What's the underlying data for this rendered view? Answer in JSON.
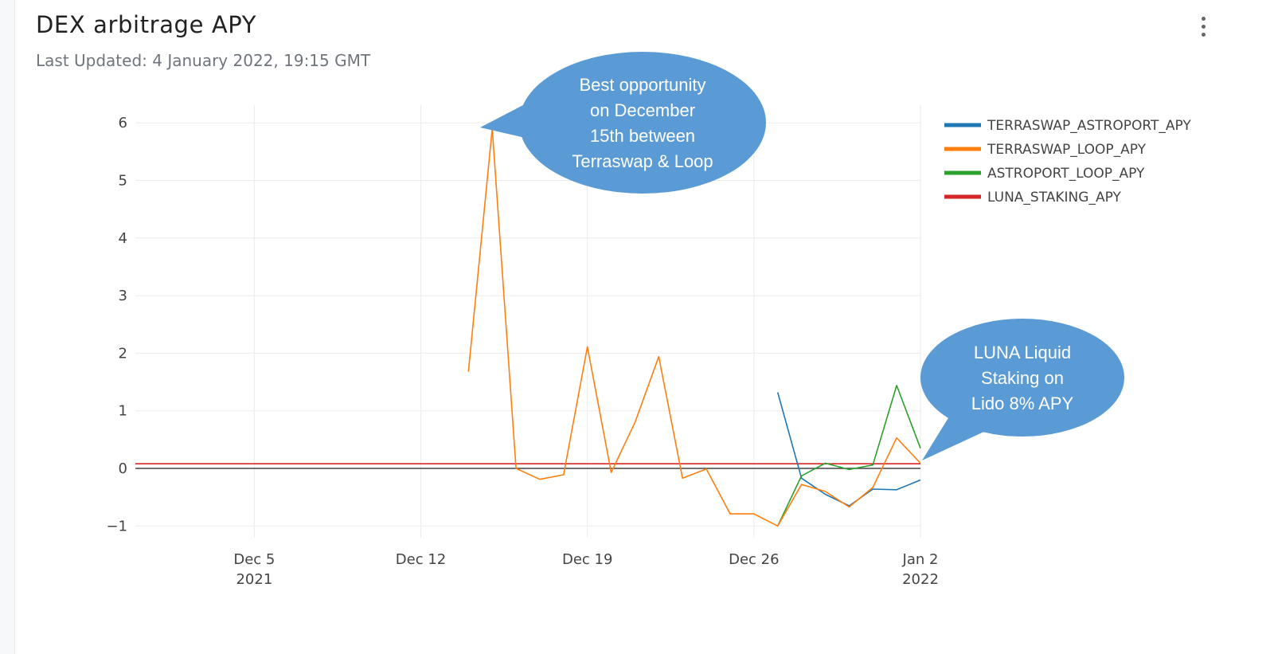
{
  "header": {
    "title": "DEX arbitrage APY",
    "subtitle": "Last Updated: 4 January 2022, 19:15 GMT",
    "menu_icon": "more-vertical-icon"
  },
  "colors": {
    "TERRASWAP_ASTROPORT_APY": "#1f77b4",
    "TERRASWAP_LOOP_APY": "#ff7f0e",
    "ASTROPORT_LOOP_APY": "#2ca02c",
    "LUNA_STAKING_APY": "#d62728",
    "callout": "#5b9bd5"
  },
  "callouts": [
    {
      "lines": [
        "Best opportunity",
        "on December",
        "15th between",
        "Terraswap & Loop"
      ]
    },
    {
      "lines": [
        "LUNA Liquid",
        "Staking on",
        "Lido 8% APY"
      ]
    }
  ],
  "chart_data": {
    "type": "line",
    "x_range": [
      "2021-11-30",
      "2022-01-02"
    ],
    "ylim": [
      -1.3,
      6.3
    ],
    "y_ticks": [
      -1,
      0,
      1,
      2,
      3,
      4,
      5,
      6
    ],
    "y_tick_labels": [
      "−1",
      "0",
      "1",
      "2",
      "3",
      "4",
      "5",
      "6"
    ],
    "x_ticks": [
      {
        "date": "2021-12-05",
        "line1": "Dec 5",
        "line2": "2021"
      },
      {
        "date": "2021-12-12",
        "line1": "Dec 12",
        "line2": ""
      },
      {
        "date": "2021-12-19",
        "line1": "Dec 19",
        "line2": ""
      },
      {
        "date": "2021-12-26",
        "line1": "Dec 26",
        "line2": ""
      },
      {
        "date": "2022-01-02",
        "line1": "Jan 2",
        "line2": "2022"
      }
    ],
    "grid": true,
    "legend_position": "top-right",
    "series": [
      {
        "name": "TERRASWAP_ASTROPORT_APY",
        "x": [
          "2021-12-27",
          "2021-12-28",
          "2021-12-29",
          "2021-12-30",
          "2021-12-31",
          "2022-01-01",
          "2022-01-02"
        ],
        "y": [
          1.32,
          -0.17,
          -0.45,
          -0.65,
          -0.36,
          -0.37,
          -0.2
        ]
      },
      {
        "name": "TERRASWAP_LOOP_APY",
        "x": [
          "2021-12-14",
          "2021-12-15",
          "2021-12-16",
          "2021-12-17",
          "2021-12-18",
          "2021-12-19",
          "2021-12-20",
          "2021-12-21",
          "2021-12-22",
          "2021-12-23",
          "2021-12-24",
          "2021-12-25",
          "2021-12-26",
          "2021-12-27",
          "2021-12-28",
          "2021-12-29",
          "2021-12-30",
          "2021-12-31",
          "2022-01-01",
          "2022-01-02"
        ],
        "y": [
          1.68,
          5.9,
          0.0,
          -0.19,
          -0.11,
          2.11,
          -0.07,
          0.8,
          1.94,
          -0.17,
          -0.01,
          -0.79,
          -0.79,
          -1.0,
          -0.28,
          -0.4,
          -0.67,
          -0.33,
          0.53,
          0.09
        ]
      },
      {
        "name": "ASTROPORT_LOOP_APY",
        "x": [
          "2021-12-27",
          "2021-12-28",
          "2021-12-29",
          "2021-12-30",
          "2021-12-31",
          "2022-01-01",
          "2022-01-02"
        ],
        "y": [
          -1.0,
          -0.13,
          0.09,
          -0.02,
          0.06,
          1.44,
          0.35
        ]
      },
      {
        "name": "LUNA_STAKING_APY",
        "x": [
          "2021-11-30",
          "2022-01-02"
        ],
        "y": [
          0.08,
          0.08
        ]
      }
    ]
  }
}
